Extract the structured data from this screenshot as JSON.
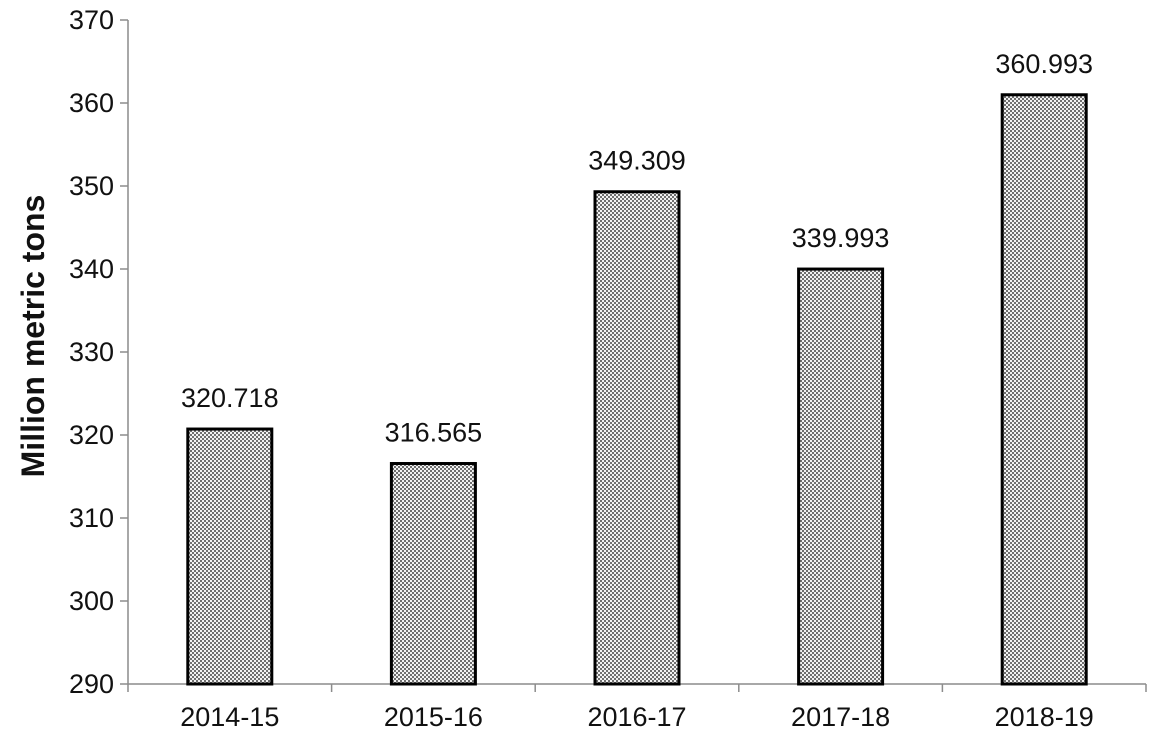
{
  "chart_data": {
    "type": "bar",
    "title": "",
    "xlabel": "",
    "ylabel": "Million metric tons",
    "categories": [
      "2014-15",
      "2015-16",
      "2016-17",
      "2017-18",
      "2018-19"
    ],
    "values": [
      320.718,
      316.565,
      349.309,
      339.993,
      360.993
    ],
    "data_labels": [
      "320.718",
      "316.565",
      "349.309",
      "339.993",
      "360.993"
    ],
    "ylim": [
      290,
      370
    ],
    "yticks": [
      290,
      300,
      310,
      320,
      330,
      340,
      350,
      360,
      370
    ],
    "grid": false,
    "legend": "none",
    "bar_fill": "checkered gray pattern",
    "colors": {
      "bar_edge": "#000000",
      "axis": "#8c8c8c",
      "text": "#111111",
      "pattern_dark": "#6f6f6f",
      "pattern_light": "#f2f2f2"
    }
  }
}
